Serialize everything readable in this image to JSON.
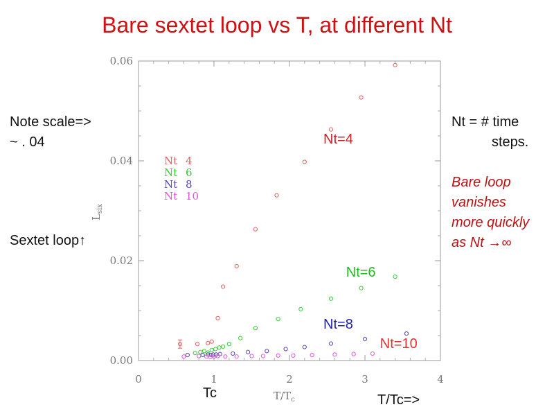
{
  "slide": {
    "title": "Bare sextet loop vs T, at different Nt",
    "note_scale_line1": "Note scale=>",
    "note_scale_line2": "~ . 04",
    "nt_def_line1": "Nt = # time",
    "nt_def_line2": "steps.",
    "bare_loop_line1": "Bare loop",
    "bare_loop_line2": "vanishes",
    "bare_loop_line3": "more quickly",
    "bare_loop_line4": "as Nt →∞",
    "sextet_loop": "Sextet loop↑",
    "tc_label": "Tc",
    "ttc_label": "T/Tc=>"
  },
  "colors": {
    "nt4": "#e06060",
    "nt6": "#33cc33",
    "nt8": "#5544bb",
    "nt10": "#dd55dd",
    "title": "#cc1111",
    "callout4": "#cc2222",
    "callout6": "#22bb22",
    "callout8": "#2222aa",
    "callout10": "#dd3333"
  },
  "chart_data": {
    "type": "scatter",
    "xlabel": "T/Tc",
    "ylabel": "Lsix",
    "xlim": [
      0,
      4
    ],
    "ylim": [
      0,
      0.06
    ],
    "xticks": [
      "0",
      "1",
      "2",
      "3",
      "4"
    ],
    "yticks": [
      "0.00",
      "0.02",
      "0.04",
      "0.06"
    ],
    "legend_position": "top-left",
    "series": [
      {
        "name": "Nt 4",
        "color_key": "nt4",
        "callout": "Nt=4",
        "callout_at": [
          2.45,
          0.0435
        ],
        "x": [
          0.55,
          0.78,
          0.92,
          0.97,
          1.05,
          1.12,
          1.3,
          1.55,
          1.83,
          2.2,
          2.55,
          2.95,
          3.4
        ],
        "y": [
          0.0033,
          0.0033,
          0.0035,
          0.0038,
          0.0085,
          0.0148,
          0.0189,
          0.0263,
          0.0331,
          0.0398,
          0.0463,
          0.0527,
          0.0592
        ]
      },
      {
        "name": "Nt 6",
        "color_key": "nt6",
        "callout": "Nt=6",
        "callout_at": [
          2.75,
          0.0168
        ],
        "x": [
          0.75,
          0.82,
          0.87,
          0.92,
          0.97,
          1.02,
          1.07,
          1.12,
          1.2,
          1.35,
          1.55,
          1.85,
          2.15,
          2.55,
          2.95,
          3.4
        ],
        "y": [
          0.0015,
          0.0017,
          0.0019,
          0.0016,
          0.0021,
          0.0023,
          0.0026,
          0.0028,
          0.0033,
          0.0045,
          0.0065,
          0.0083,
          0.0103,
          0.0124,
          0.0145,
          0.0168
        ]
      },
      {
        "name": "Nt 8",
        "color_key": "nt8",
        "callout": "Nt=8",
        "callout_at": [
          2.45,
          0.0064
        ],
        "x": [
          0.65,
          0.85,
          0.92,
          0.96,
          0.99,
          1.03,
          1.08,
          1.25,
          1.45,
          1.7,
          1.95,
          2.2,
          2.55,
          3.0,
          3.55
        ],
        "y": [
          0.0011,
          0.0011,
          0.0012,
          0.0011,
          0.0012,
          0.0012,
          0.0013,
          0.0014,
          0.0017,
          0.0019,
          0.0023,
          0.0027,
          0.0034,
          0.0043,
          0.0054
        ]
      },
      {
        "name": "Nt 10",
        "color_key": "nt10",
        "callout": "Nt=10",
        "callout_at": [
          3.2,
          0.0025
        ],
        "x": [
          0.6,
          0.8,
          0.9,
          0.95,
          1.0,
          1.05,
          1.15,
          1.3,
          1.5,
          1.65,
          1.85,
          2.05,
          2.3,
          2.6,
          2.85,
          3.1
        ],
        "y": [
          0.0008,
          0.0009,
          0.0008,
          0.0007,
          0.0008,
          0.0009,
          0.0008,
          0.0008,
          0.0009,
          0.0009,
          0.001,
          0.001,
          0.0011,
          0.0012,
          0.0013,
          0.0014
        ]
      }
    ]
  }
}
